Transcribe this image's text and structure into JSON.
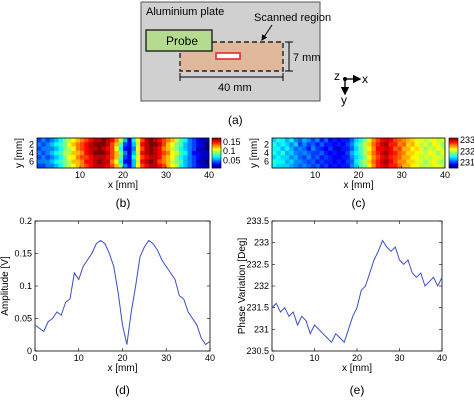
{
  "schematic": {
    "plate_label": "Aluminium plate",
    "probe_label": "Probe",
    "region_label": "Scanned region",
    "width_label": "40 mm",
    "height_label": "7 mm",
    "axis_z": "z",
    "axis_x": "x",
    "axis_y": "y",
    "caption": "(a)",
    "colors": {
      "plate": "#d0d0d0",
      "probe": "#b5dc8e",
      "region": "#e0b89b",
      "defect": "#e8262b"
    }
  },
  "chart_data": [
    {
      "id": "b",
      "type": "heatmap",
      "caption": "(b)",
      "xlabel": "x [mm]",
      "ylabel": "y [mm]",
      "xlim": [
        0,
        40
      ],
      "x_ticks": [
        "10",
        "20",
        "30",
        "40"
      ],
      "y_ticks": [
        "2",
        "4",
        "6"
      ],
      "colorbar_ticks": [
        "0.15",
        "0.1",
        "0.05"
      ],
      "colorbar_range": [
        0.01,
        0.17
      ],
      "x": [
        0.5,
        1.5,
        2.5,
        3.5,
        4.5,
        5.5,
        6.5,
        7.5,
        8.5,
        9.5,
        10.5,
        11.5,
        12.5,
        13.5,
        14.5,
        15.5,
        16.5,
        17.5,
        18.5,
        19.5,
        20.5,
        21.5,
        22.5,
        23.5,
        24.5,
        25.5,
        26.5,
        27.5,
        28.5,
        29.5,
        30.5,
        31.5,
        32.5,
        33.5,
        34.5,
        35.5,
        36.5,
        37.5,
        38.5,
        39.5
      ],
      "y": [
        1,
        2,
        3,
        4,
        5,
        6,
        7
      ],
      "z": [
        [
          0.04,
          0.05,
          0.04,
          0.05,
          0.06,
          0.07,
          0.09,
          0.1,
          0.11,
          0.12,
          0.13,
          0.14,
          0.15,
          0.16,
          0.16,
          0.17,
          0.16,
          0.15,
          0.13,
          0.1,
          0.06,
          0.02,
          0.07,
          0.11,
          0.14,
          0.16,
          0.17,
          0.16,
          0.15,
          0.14,
          0.13,
          0.12,
          0.1,
          0.08,
          0.07,
          0.05,
          0.04,
          0.03,
          0.02,
          0.02
        ],
        [
          0.05,
          0.04,
          0.05,
          0.06,
          0.07,
          0.08,
          0.09,
          0.11,
          0.12,
          0.13,
          0.14,
          0.15,
          0.16,
          0.17,
          0.17,
          0.17,
          0.16,
          0.14,
          0.12,
          0.08,
          0.04,
          0.03,
          0.06,
          0.1,
          0.15,
          0.16,
          0.17,
          0.17,
          0.16,
          0.14,
          0.12,
          0.11,
          0.09,
          0.08,
          0.06,
          0.05,
          0.04,
          0.03,
          0.02,
          0.01
        ],
        [
          0.04,
          0.05,
          0.05,
          0.05,
          0.06,
          0.07,
          0.09,
          0.1,
          0.11,
          0.13,
          0.14,
          0.15,
          0.16,
          0.16,
          0.17,
          0.16,
          0.15,
          0.14,
          0.11,
          0.07,
          0.03,
          0.02,
          0.05,
          0.11,
          0.14,
          0.16,
          0.17,
          0.16,
          0.15,
          0.13,
          0.12,
          0.1,
          0.09,
          0.07,
          0.06,
          0.05,
          0.04,
          0.02,
          0.02,
          0.01
        ],
        [
          0.05,
          0.04,
          0.05,
          0.06,
          0.07,
          0.08,
          0.1,
          0.1,
          0.12,
          0.12,
          0.13,
          0.15,
          0.16,
          0.17,
          0.17,
          0.17,
          0.16,
          0.14,
          0.12,
          0.09,
          0.05,
          0.02,
          0.06,
          0.1,
          0.15,
          0.16,
          0.17,
          0.16,
          0.15,
          0.14,
          0.13,
          0.11,
          0.1,
          0.08,
          0.07,
          0.05,
          0.03,
          0.03,
          0.02,
          0.02
        ],
        [
          0.04,
          0.05,
          0.04,
          0.05,
          0.06,
          0.07,
          0.09,
          0.11,
          0.11,
          0.13,
          0.14,
          0.14,
          0.15,
          0.16,
          0.16,
          0.16,
          0.15,
          0.14,
          0.12,
          0.08,
          0.04,
          0.03,
          0.07,
          0.11,
          0.14,
          0.15,
          0.16,
          0.16,
          0.15,
          0.13,
          0.12,
          0.11,
          0.09,
          0.07,
          0.06,
          0.05,
          0.04,
          0.03,
          0.02,
          0.02
        ],
        [
          0.05,
          0.05,
          0.05,
          0.06,
          0.07,
          0.08,
          0.09,
          0.1,
          0.12,
          0.12,
          0.13,
          0.15,
          0.15,
          0.16,
          0.17,
          0.16,
          0.16,
          0.13,
          0.11,
          0.07,
          0.03,
          0.02,
          0.06,
          0.1,
          0.15,
          0.16,
          0.17,
          0.16,
          0.14,
          0.13,
          0.12,
          0.1,
          0.09,
          0.08,
          0.06,
          0.05,
          0.04,
          0.02,
          0.02,
          0.01
        ],
        [
          0.04,
          0.04,
          0.05,
          0.05,
          0.06,
          0.07,
          0.09,
          0.1,
          0.11,
          0.12,
          0.13,
          0.14,
          0.15,
          0.16,
          0.16,
          0.16,
          0.15,
          0.14,
          0.12,
          0.09,
          0.05,
          0.03,
          0.06,
          0.11,
          0.14,
          0.15,
          0.16,
          0.16,
          0.15,
          0.14,
          0.12,
          0.11,
          0.1,
          0.07,
          0.06,
          0.05,
          0.04,
          0.03,
          0.02,
          0.02
        ]
      ]
    },
    {
      "id": "c",
      "type": "heatmap",
      "caption": "(c)",
      "xlabel": "x [mm]",
      "ylabel": "y [mm]",
      "xlim": [
        0,
        40
      ],
      "x_ticks": [
        "10",
        "20",
        "30",
        "40"
      ],
      "y_ticks": [
        "2",
        "4",
        "6"
      ],
      "colorbar_ticks": [
        "233",
        "232",
        "231"
      ],
      "colorbar_range": [
        230.5,
        233.2
      ],
      "x": [
        0.5,
        1.5,
        2.5,
        3.5,
        4.5,
        5.5,
        6.5,
        7.5,
        8.5,
        9.5,
        10.5,
        11.5,
        12.5,
        13.5,
        14.5,
        15.5,
        16.5,
        17.5,
        18.5,
        19.5,
        20.5,
        21.5,
        22.5,
        23.5,
        24.5,
        25.5,
        26.5,
        27.5,
        28.5,
        29.5,
        30.5,
        31.5,
        32.5,
        33.5,
        34.5,
        35.5,
        36.5,
        37.5,
        38.5,
        39.5
      ],
      "y": [
        1,
        2,
        3,
        4,
        5,
        6,
        7
      ],
      "z": [
        [
          231.4,
          231.6,
          231.5,
          231.3,
          231.5,
          231.2,
          231.1,
          231.3,
          231.2,
          231.0,
          231.2,
          230.9,
          231.1,
          230.8,
          230.9,
          230.8,
          230.9,
          230.9,
          231.1,
          231.4,
          231.6,
          231.9,
          232.1,
          232.5,
          232.7,
          232.9,
          233.0,
          232.9,
          232.7,
          232.6,
          232.5,
          232.4,
          232.3,
          232.1,
          232.2,
          232.0,
          232.1,
          232.2,
          232.0,
          232.1
        ],
        [
          231.6,
          231.4,
          231.5,
          231.4,
          231.2,
          231.4,
          231.0,
          231.2,
          231.0,
          231.1,
          230.9,
          231.1,
          230.9,
          230.9,
          230.8,
          230.9,
          230.8,
          231.0,
          231.2,
          231.5,
          231.8,
          232.0,
          232.3,
          232.6,
          232.8,
          233.0,
          233.1,
          232.8,
          232.8,
          232.5,
          232.6,
          232.3,
          232.4,
          232.2,
          232.0,
          232.1,
          231.9,
          232.2,
          232.1,
          231.9
        ],
        [
          231.5,
          231.5,
          231.3,
          231.5,
          231.3,
          231.1,
          231.2,
          231.1,
          230.9,
          231.2,
          231.0,
          230.9,
          230.8,
          231.0,
          230.8,
          230.7,
          230.9,
          230.9,
          231.1,
          231.4,
          231.7,
          232.0,
          232.2,
          232.5,
          232.9,
          232.9,
          233.0,
          232.9,
          232.6,
          232.7,
          232.4,
          232.4,
          232.2,
          232.3,
          232.1,
          231.9,
          232.1,
          232.0,
          232.2,
          232.0
        ],
        [
          231.6,
          231.4,
          231.6,
          231.3,
          231.4,
          231.2,
          231.1,
          231.2,
          231.1,
          231.0,
          231.0,
          231.1,
          230.9,
          230.8,
          230.9,
          230.8,
          230.8,
          231.0,
          231.3,
          231.5,
          231.7,
          232.0,
          232.3,
          232.6,
          232.8,
          233.0,
          233.1,
          232.9,
          232.8,
          232.6,
          232.5,
          232.3,
          232.3,
          232.2,
          232.1,
          232.0,
          232.2,
          232.1,
          231.9,
          232.1
        ],
        [
          231.4,
          231.5,
          231.4,
          231.4,
          231.2,
          231.3,
          231.1,
          231.0,
          231.2,
          231.0,
          231.1,
          230.9,
          231.0,
          230.9,
          230.8,
          230.8,
          230.9,
          230.9,
          231.2,
          231.4,
          231.6,
          231.9,
          232.2,
          232.5,
          232.7,
          232.9,
          233.0,
          232.8,
          232.7,
          232.6,
          232.4,
          232.4,
          232.2,
          232.2,
          232.0,
          232.1,
          232.0,
          232.1,
          232.1,
          232.0
        ],
        [
          231.6,
          231.5,
          231.5,
          231.3,
          231.4,
          231.2,
          231.2,
          231.1,
          231.0,
          231.1,
          230.9,
          231.0,
          230.9,
          230.9,
          230.8,
          230.9,
          230.8,
          231.0,
          231.1,
          231.5,
          231.8,
          232.0,
          232.3,
          232.6,
          232.8,
          233.0,
          233.1,
          232.9,
          232.7,
          232.5,
          232.5,
          232.3,
          232.3,
          232.1,
          232.1,
          231.9,
          232.1,
          232.2,
          232.0,
          231.9
        ],
        [
          231.5,
          231.4,
          231.4,
          231.4,
          231.3,
          231.2,
          231.1,
          231.2,
          231.1,
          231.0,
          231.1,
          230.9,
          231.0,
          230.8,
          230.9,
          230.8,
          230.9,
          230.9,
          231.2,
          231.4,
          231.7,
          231.9,
          232.2,
          232.5,
          232.8,
          232.9,
          233.0,
          232.8,
          232.8,
          232.6,
          232.4,
          232.4,
          232.2,
          232.2,
          232.0,
          232.0,
          232.0,
          232.1,
          232.1,
          232.0
        ]
      ]
    },
    {
      "id": "d",
      "type": "line",
      "caption": "(d)",
      "xlabel": "x [mm]",
      "ylabel": "Amplitude [V]",
      "xlim": [
        0,
        40
      ],
      "ylim": [
        0,
        0.2
      ],
      "x_ticks": [
        "0",
        "10",
        "20",
        "30",
        "40"
      ],
      "y_ticks": [
        "0",
        "0.05",
        "0.1",
        "0.15",
        "0.2"
      ],
      "color": "#3b4fc6",
      "x": [
        0,
        1,
        2,
        3,
        4,
        5,
        6,
        7,
        8,
        9,
        10,
        11,
        12,
        13,
        14,
        15,
        16,
        17,
        18,
        19,
        20,
        21,
        22,
        23,
        24,
        25,
        26,
        27,
        28,
        29,
        30,
        31,
        32,
        33,
        34,
        35,
        36,
        37,
        38,
        39,
        40
      ],
      "y": [
        0.04,
        0.035,
        0.03,
        0.045,
        0.05,
        0.06,
        0.055,
        0.075,
        0.08,
        0.12,
        0.11,
        0.13,
        0.14,
        0.15,
        0.165,
        0.17,
        0.165,
        0.15,
        0.13,
        0.09,
        0.04,
        0.01,
        0.06,
        0.1,
        0.145,
        0.16,
        0.17,
        0.165,
        0.155,
        0.14,
        0.13,
        0.12,
        0.11,
        0.085,
        0.08,
        0.06,
        0.05,
        0.04,
        0.02,
        0.01,
        0.015
      ]
    },
    {
      "id": "e",
      "type": "line",
      "caption": "(e)",
      "xlabel": "x [mm]",
      "ylabel": "Phase Variation [Deg]",
      "xlim": [
        0,
        40
      ],
      "ylim": [
        230.5,
        233.5
      ],
      "x_ticks": [
        "0",
        "10",
        "20",
        "30",
        "40"
      ],
      "y_ticks": [
        "230.5",
        "231",
        "231.5",
        "232",
        "232.5",
        "233",
        "233.5"
      ],
      "color": "#3b4fc6",
      "x": [
        0,
        1,
        2,
        3,
        4,
        5,
        6,
        7,
        8,
        9,
        10,
        11,
        12,
        13,
        14,
        15,
        16,
        17,
        18,
        19,
        20,
        21,
        22,
        23,
        24,
        25,
        26,
        27,
        28,
        29,
        30,
        31,
        32,
        33,
        34,
        35,
        36,
        37,
        38,
        39,
        40
      ],
      "y": [
        231.5,
        231.6,
        231.4,
        231.5,
        231.3,
        231.4,
        231.1,
        231.3,
        231.2,
        230.9,
        231.1,
        231.0,
        230.9,
        230.8,
        230.7,
        230.9,
        230.8,
        230.7,
        231.0,
        231.3,
        231.5,
        231.9,
        232.0,
        232.3,
        232.6,
        232.8,
        233.05,
        232.9,
        232.8,
        232.9,
        232.6,
        232.5,
        232.6,
        232.3,
        232.2,
        232.3,
        232.0,
        232.1,
        232.2,
        232.0,
        232.2
      ]
    }
  ]
}
